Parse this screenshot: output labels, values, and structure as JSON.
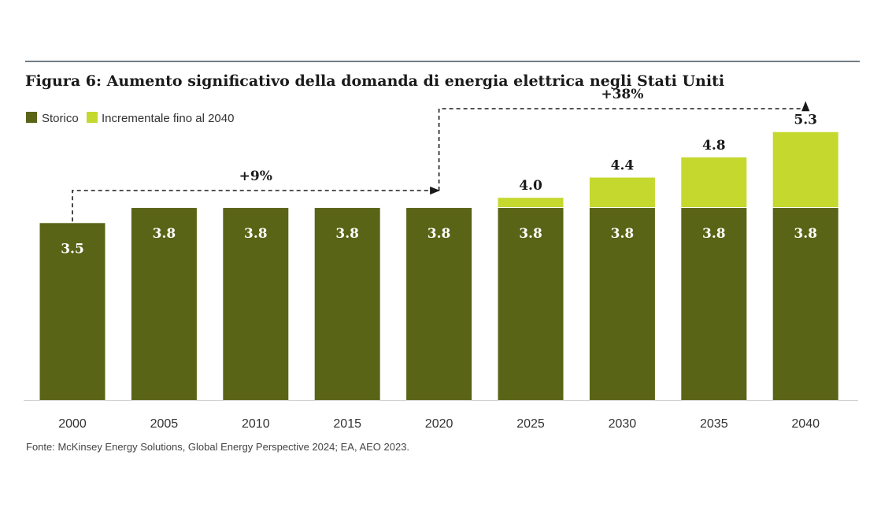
{
  "chart_data": {
    "type": "bar",
    "stacked": true,
    "title": "Figura 6: Aumento significativo della domanda di energia elettrica negli Stati Uniti",
    "categories": [
      "2000",
      "2005",
      "2010",
      "2015",
      "2020",
      "2025",
      "2030",
      "2035",
      "2040"
    ],
    "series": [
      {
        "name": "Storico",
        "color": "#5a6416",
        "values": [
          3.5,
          3.8,
          3.8,
          3.8,
          3.8,
          3.8,
          3.8,
          3.8,
          3.8
        ]
      },
      {
        "name": "Incrementale fino al 2040",
        "color": "#c5d82e",
        "values": [
          0,
          0,
          0,
          0,
          0,
          0.2,
          0.6,
          1.0,
          1.5
        ]
      }
    ],
    "labels_inside": [
      "3.5",
      "3.8",
      "3.8",
      "3.8",
      "3.8",
      "3.8",
      "3.8",
      "3.8",
      "3.8"
    ],
    "labels_total": [
      "",
      "",
      "",
      "",
      "",
      "4.0",
      "4.4",
      "4.8",
      "5.3"
    ],
    "ylim": [
      0,
      5.3
    ],
    "grid": false,
    "legend_position": "top-left",
    "annotations": [
      {
        "text": "+9%",
        "from": "2000",
        "to": "2020"
      },
      {
        "text": "+38%",
        "from": "2020",
        "to": "2040"
      }
    ],
    "source": "Fonte: McKinsey Energy Solutions, Global Energy Perspective 2024; EA, AEO 2023."
  }
}
